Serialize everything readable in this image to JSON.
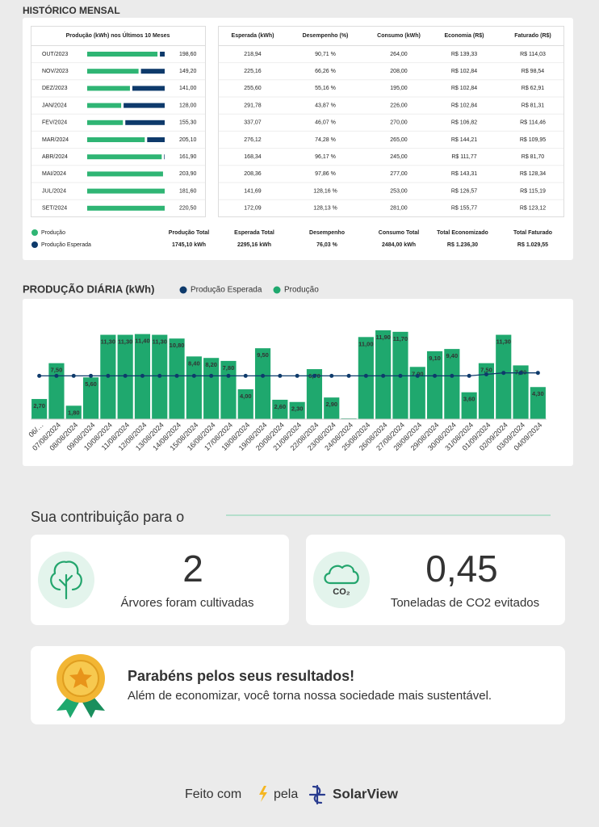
{
  "monthly": {
    "title": "HISTÓRICO MENSAL",
    "production_header": "Produção (kWh) nos Últimos 10 Meses",
    "columns": [
      "Esperada (kWh)",
      "Desempenho (%)",
      "Consumo (kWh)",
      "Economia (R$)",
      "Faturado (R$)"
    ],
    "rows": [
      {
        "month": "OUT/2023",
        "production": 198.6,
        "production_label": "198,60",
        "expected": 218.94,
        "expected_label": "218,94",
        "performance": "90,71 %",
        "consumption": "264,00",
        "economy": "R$ 139,33",
        "billed": "R$ 114,03"
      },
      {
        "month": "NOV/2023",
        "production": 149.2,
        "production_label": "149,20",
        "expected": 225.16,
        "expected_label": "225,16",
        "performance": "66,26 %",
        "consumption": "208,00",
        "economy": "R$ 102,84",
        "billed": "R$ 98,54"
      },
      {
        "month": "DEZ/2023",
        "production": 141.0,
        "production_label": "141,00",
        "expected": 255.6,
        "expected_label": "255,60",
        "performance": "55,16 %",
        "consumption": "195,00",
        "economy": "R$ 102,84",
        "billed": "R$ 62,91"
      },
      {
        "month": "JAN/2024",
        "production": 128.0,
        "production_label": "128,00",
        "expected": 291.78,
        "expected_label": "291,78",
        "performance": "43,87 %",
        "consumption": "226,00",
        "economy": "R$ 102,84",
        "billed": "R$ 81,31"
      },
      {
        "month": "FEV/2024",
        "production": 155.3,
        "production_label": "155,30",
        "expected": 337.07,
        "expected_label": "337,07",
        "performance": "46,07 %",
        "consumption": "270,00",
        "economy": "R$ 106,82",
        "billed": "R$ 114,46"
      },
      {
        "month": "MAR/2024",
        "production": 205.1,
        "production_label": "205,10",
        "expected": 276.12,
        "expected_label": "276,12",
        "performance": "74,28 %",
        "consumption": "265,00",
        "economy": "R$ 144,21",
        "billed": "R$ 109,95"
      },
      {
        "month": "ABR/2024",
        "production": 161.9,
        "production_label": "161,90",
        "expected": 168.34,
        "expected_label": "168,34",
        "performance": "96,17 %",
        "consumption": "245,00",
        "economy": "R$ 111,77",
        "billed": "R$ 81,70"
      },
      {
        "month": "MAI/2024",
        "production": 203.9,
        "production_label": "203,90",
        "expected": 208.36,
        "expected_label": "208,36",
        "performance": "97,86 %",
        "consumption": "277,00",
        "economy": "R$ 143,31",
        "billed": "R$ 128,34"
      },
      {
        "month": "JUL/2024",
        "production": 181.6,
        "production_label": "181,60",
        "expected": 141.69,
        "expected_label": "141,69",
        "performance": "128,16 %",
        "consumption": "253,00",
        "economy": "R$ 126,57",
        "billed": "R$ 115,19"
      },
      {
        "month": "SET/2024",
        "production": 220.5,
        "production_label": "220,50",
        "expected": 172.09,
        "expected_label": "172,09",
        "performance": "128,13 %",
        "consumption": "281,00",
        "economy": "R$ 155,77",
        "billed": "R$ 123,12"
      }
    ],
    "legend": [
      {
        "name": "Produção",
        "color": "#2fb574"
      },
      {
        "name": "Produção Esperada",
        "color": "#0e3a6b"
      }
    ],
    "totals": [
      {
        "label": "Produção Total",
        "value": "1745,10 kWh"
      },
      {
        "label": "Esperada Total",
        "value": "2295,16 kWh"
      },
      {
        "label": "Desempenho",
        "value": "76,03 %"
      },
      {
        "label": "Consumo Total",
        "value": "2484,00 kWh"
      },
      {
        "label": "Total Economizado",
        "value": "R$ 1.236,30"
      },
      {
        "label": "Total Faturado",
        "value": "R$ 1.029,55"
      }
    ]
  },
  "chart_data": {
    "type": "bar",
    "title": "PRODUÇÃO DIÁRIA (kWh)",
    "categories": [
      "06/…",
      "07/08/2024",
      "08/08/2024",
      "09/08/2024",
      "10/08/2024",
      "11/08/2024",
      "12/08/2024",
      "13/08/2024",
      "14/08/2024",
      "15/08/2024",
      "16/08/2024",
      "17/08/2024",
      "18/08/2024",
      "19/08/2024",
      "20/08/2024",
      "21/08/2024",
      "22/08/2024",
      "23/08/2024",
      "24/08/2024",
      "25/08/2024",
      "26/08/2024",
      "27/08/2024",
      "28/08/2024",
      "29/08/2024",
      "30/08/2024",
      "31/08/2024",
      "01/09/2024",
      "02/09/2024",
      "03/09/2024",
      "04/09/2024"
    ],
    "series": [
      {
        "name": "Produção Esperada",
        "type": "line",
        "color": "#0e3a6b",
        "values": [
          5.8,
          5.8,
          5.8,
          5.8,
          5.8,
          5.8,
          5.8,
          5.8,
          5.8,
          5.8,
          5.8,
          5.8,
          5.8,
          5.8,
          5.8,
          5.8,
          5.8,
          5.8,
          5.8,
          5.8,
          5.8,
          5.8,
          5.8,
          5.8,
          5.8,
          5.8,
          6.0,
          6.2,
          6.2,
          6.2
        ]
      },
      {
        "name": "Produção",
        "type": "bar",
        "color": "#1fa86e",
        "values": [
          2.7,
          7.5,
          1.8,
          5.6,
          11.3,
          11.3,
          11.4,
          11.3,
          10.8,
          8.4,
          8.2,
          7.8,
          4.0,
          9.5,
          2.6,
          2.3,
          6.7,
          2.9,
          0.1,
          11.0,
          11.9,
          11.7,
          7.0,
          9.1,
          9.4,
          3.6,
          7.5,
          11.3,
          7.2,
          4.3
        ],
        "value_labels": [
          "2,70",
          "7,50",
          "1,80",
          "5,60",
          "11,30",
          "11,30",
          "11,40",
          "11,30",
          "10,80",
          "8,40",
          "8,20",
          "7,80",
          "4,00",
          "9,50",
          "2,60",
          "2,30",
          "6,70",
          "2,90",
          null,
          "11,00",
          "11,90",
          "11,70",
          "7,00",
          "9,10",
          "9,40",
          "3,60",
          "7,50",
          "11,30",
          "7,20",
          "4,30"
        ]
      }
    ]
  },
  "contribution": {
    "title": "Sua contribuição para o",
    "cards": [
      {
        "value": "2",
        "caption": "Árvores foram cultivadas"
      },
      {
        "value": "0,45",
        "caption": "Toneladas de CO2 evitados",
        "icon_label": "CO₂"
      }
    ]
  },
  "congrats": {
    "title": "Parabéns pelos seus resultados!",
    "text": "Além de economizar, você torna nossa sociedade mais sustentável."
  },
  "footer": {
    "made_with": "Feito com",
    "by": "pela",
    "brand": "SolarView"
  }
}
